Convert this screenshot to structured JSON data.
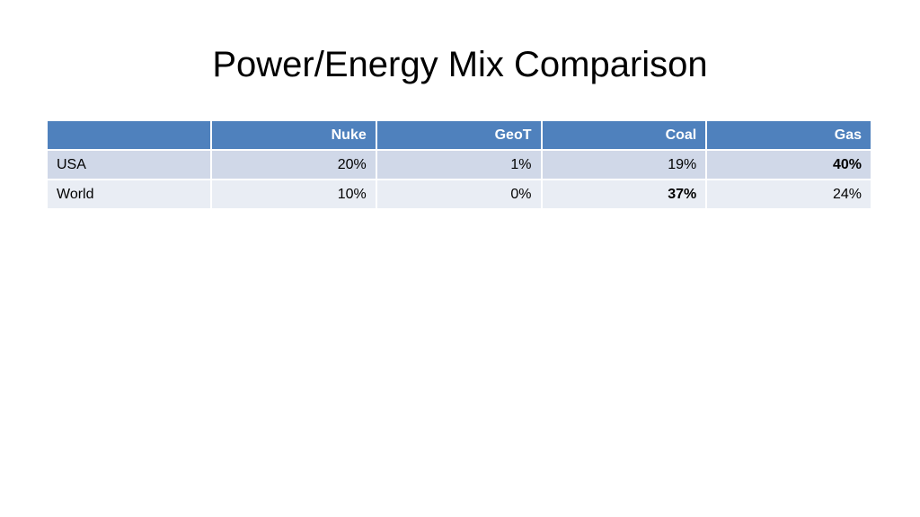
{
  "title": "Power/Energy Mix Comparison",
  "table": {
    "columns": [
      "",
      "Nuke",
      "GeoT",
      "Coal",
      "Gas"
    ],
    "rows": [
      {
        "label": "USA",
        "values": [
          "20%",
          "1%",
          "19%",
          "40%"
        ],
        "bold_index": 3
      },
      {
        "label": "World",
        "values": [
          "10%",
          "0%",
          "37%",
          "24%"
        ],
        "bold_index": 2
      }
    ]
  },
  "colors": {
    "header_bg": "#4f81bd",
    "row_odd_bg": "#d0d8e8",
    "row_even_bg": "#e9edf4"
  }
}
